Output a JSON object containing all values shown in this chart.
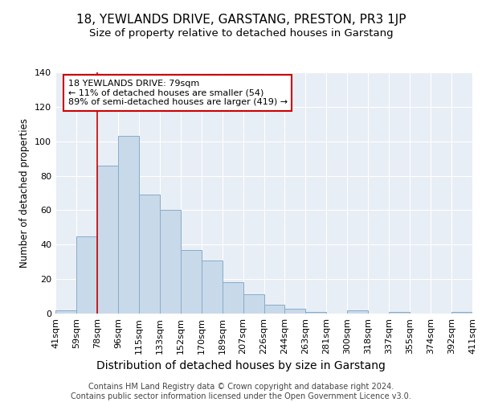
{
  "title": "18, YEWLANDS DRIVE, GARSTANG, PRESTON, PR3 1JP",
  "subtitle": "Size of property relative to detached houses in Garstang",
  "xlabel": "Distribution of detached houses by size in Garstang",
  "ylabel": "Number of detached properties",
  "bar_values": [
    2,
    45,
    86,
    103,
    69,
    60,
    37,
    31,
    18,
    11,
    5,
    3,
    1,
    0,
    2,
    0,
    1,
    0,
    0,
    1
  ],
  "bar_labels": [
    "41sqm",
    "59sqm",
    "78sqm",
    "96sqm",
    "115sqm",
    "133sqm",
    "152sqm",
    "170sqm",
    "189sqm",
    "207sqm",
    "226sqm",
    "244sqm",
    "263sqm",
    "281sqm",
    "300sqm",
    "318sqm",
    "337sqm",
    "355sqm",
    "374sqm",
    "392sqm",
    "411sqm"
  ],
  "bar_color": "#c8d9ea",
  "bar_edge_color": "#85adc8",
  "reference_line_color": "#cc0000",
  "annotation_text": "18 YEWLANDS DRIVE: 79sqm\n← 11% of detached houses are smaller (54)\n89% of semi-detached houses are larger (419) →",
  "annotation_box_color": "#cc0000",
  "ylim": [
    0,
    140
  ],
  "yticks": [
    0,
    20,
    40,
    60,
    80,
    100,
    120,
    140
  ],
  "footer_text": "Contains HM Land Registry data © Crown copyright and database right 2024.\nContains public sector information licensed under the Open Government Licence v3.0.",
  "bg_color": "#e8eef5",
  "grid_color": "#ffffff",
  "title_fontsize": 11,
  "subtitle_fontsize": 9.5,
  "xlabel_fontsize": 10,
  "ylabel_fontsize": 8.5,
  "tick_fontsize": 8,
  "footer_fontsize": 7,
  "annotation_fontsize": 8
}
